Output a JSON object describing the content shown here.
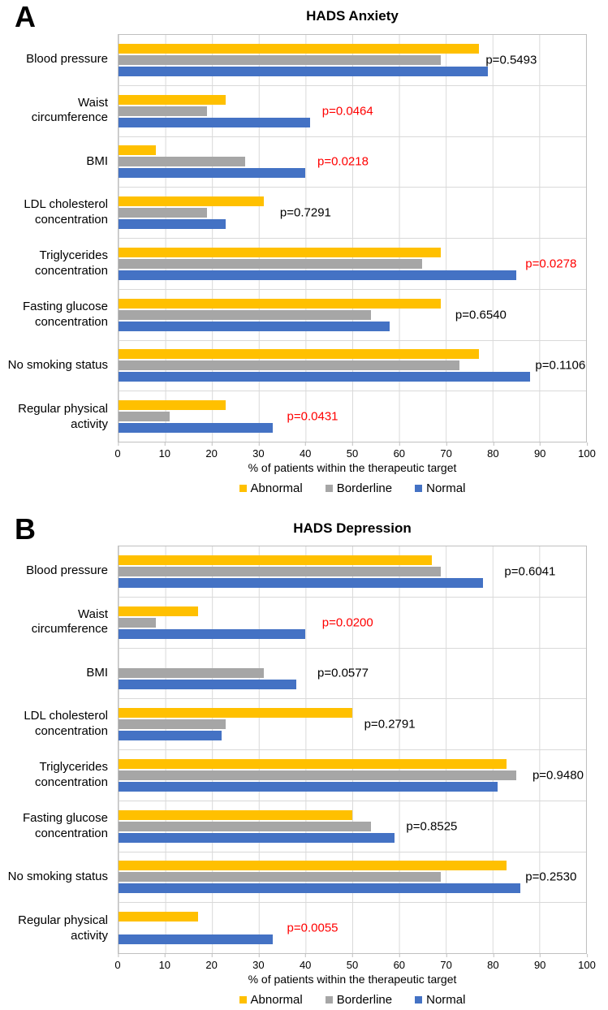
{
  "figure": {
    "axis_title": "% of patients within the therapeutic target",
    "x_ticks": [
      0,
      10,
      20,
      30,
      40,
      50,
      60,
      70,
      80,
      90,
      100
    ],
    "legend": [
      {
        "label": "Abnormal",
        "color": "#FFC000"
      },
      {
        "label": "Borderline",
        "color": "#A6A6A6"
      },
      {
        "label": "Normal",
        "color": "#4472C4"
      }
    ],
    "significant_color": "#FF0000",
    "grid_color": "#D9D9D9"
  },
  "chart_data": [
    {
      "type": "bar",
      "panel": "A",
      "title": "HADS Anxiety",
      "orientation": "horizontal",
      "xlim": [
        0,
        100
      ],
      "xlabel": "% of patients within the therapeutic target",
      "series_names": [
        "Abnormal",
        "Borderline",
        "Normal"
      ],
      "rows": [
        {
          "category": "Blood pressure",
          "values": [
            77,
            69,
            79
          ],
          "p": "p=0.5493",
          "significant": false,
          "p_x": 84
        },
        {
          "category": "Waist circumference",
          "values": [
            23,
            19,
            41
          ],
          "p": "p=0.0464",
          "significant": true,
          "p_x": 49
        },
        {
          "category": "BMI",
          "values": [
            8,
            27,
            40
          ],
          "p": "p=0.0218",
          "significant": true,
          "p_x": 48
        },
        {
          "category": "LDL cholesterol concentration",
          "values": [
            31,
            19,
            23
          ],
          "p": "p=0.7291",
          "significant": false,
          "p_x": 40
        },
        {
          "category": "Triglycerides concentration",
          "values": [
            69,
            65,
            85
          ],
          "p": "p=0.0278",
          "significant": true,
          "p_x": 92.5
        },
        {
          "category": "Fasting glucose concentration",
          "values": [
            69,
            54,
            58
          ],
          "p": "p=0.6540",
          "significant": false,
          "p_x": 77.5
        },
        {
          "category": "No smoking status",
          "values": [
            77,
            73,
            88
          ],
          "p": "p=0.1106",
          "significant": false,
          "p_x": 94.5
        },
        {
          "category": "Regular physical activity",
          "values": [
            23,
            11,
            33
          ],
          "p": "p=0.0431",
          "significant": true,
          "p_x": 41.5
        }
      ]
    },
    {
      "type": "bar",
      "panel": "B",
      "title": "HADS Depression",
      "orientation": "horizontal",
      "xlim": [
        0,
        100
      ],
      "xlabel": "% of patients within the therapeutic target",
      "series_names": [
        "Abnormal",
        "Borderline",
        "Normal"
      ],
      "rows": [
        {
          "category": "Blood pressure",
          "values": [
            67,
            69,
            78
          ],
          "p": "p=0.6041",
          "significant": false,
          "p_x": 88
        },
        {
          "category": "Waist circumference",
          "values": [
            17,
            8,
            40
          ],
          "p": "p=0.0200",
          "significant": true,
          "p_x": 49
        },
        {
          "category": "BMI",
          "values": [
            0,
            31,
            38
          ],
          "p": "p=0.0577",
          "significant": false,
          "p_x": 48
        },
        {
          "category": "LDL cholesterol concentration",
          "values": [
            50,
            23,
            22
          ],
          "p": "p=0.2791",
          "significant": false,
          "p_x": 58
        },
        {
          "category": "Triglycerides concentration",
          "values": [
            83,
            85,
            81
          ],
          "p": "p=0.9480",
          "significant": false,
          "p_x": 94
        },
        {
          "category": "Fasting glucose concentration",
          "values": [
            50,
            54,
            59
          ],
          "p": "p=0.8525",
          "significant": false,
          "p_x": 67
        },
        {
          "category": "No smoking status",
          "values": [
            83,
            69,
            86
          ],
          "p": "p=0.2530",
          "significant": false,
          "p_x": 92.5
        },
        {
          "category": "Regular physical activity",
          "values": [
            17,
            0,
            33
          ],
          "p": "p=0.0055",
          "significant": true,
          "p_x": 41.5
        }
      ]
    }
  ]
}
